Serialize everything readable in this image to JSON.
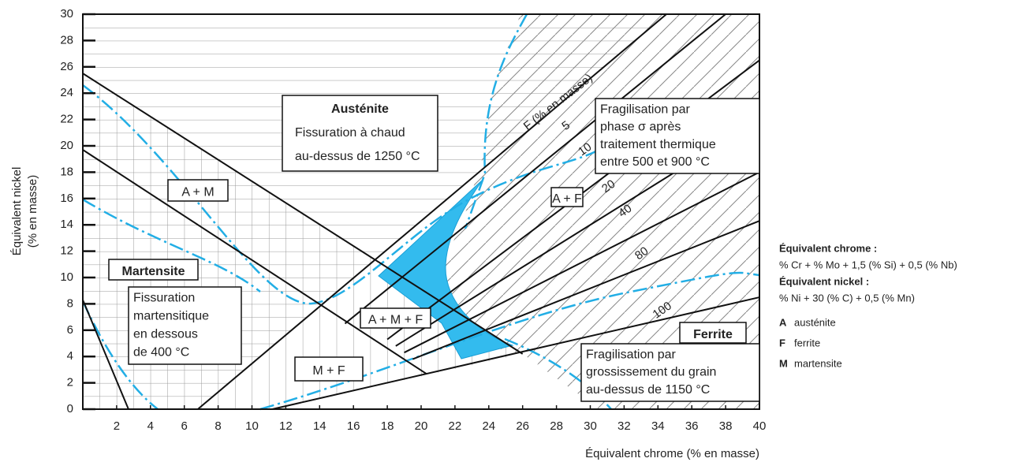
{
  "chart_data": {
    "type": "line",
    "x_label": "Équivalent chrome (% en masse)",
    "y_label": [
      "Équivalent nickel",
      "(% en masse)"
    ],
    "xlim": [
      0,
      40
    ],
    "xticks": [
      2,
      4,
      6,
      8,
      10,
      12,
      14,
      16,
      18,
      20,
      22,
      24,
      26,
      28,
      30,
      32,
      34,
      36,
      38,
      40
    ],
    "ylim": [
      0,
      30
    ],
    "yticks": [
      0,
      2,
      4,
      6,
      8,
      10,
      12,
      14,
      16,
      18,
      20,
      22,
      24,
      26,
      28,
      30
    ],
    "series": [
      {
        "color": "#111111",
        "x": [
          0,
          26
        ],
        "values": [
          25.5,
          4.2
        ]
      },
      {
        "color": "#111111",
        "x": [
          0,
          20.3
        ],
        "values": [
          19.7,
          2.7
        ]
      },
      {
        "color": "#111111",
        "x": [
          0,
          2.7
        ],
        "values": [
          8.3,
          0
        ]
      },
      {
        "color": "#111111",
        "x": [
          6.8,
          34.5
        ],
        "values": [
          0,
          30
        ]
      },
      {
        "name": "5",
        "color": "#111111",
        "x": [
          15.5,
          38
        ],
        "values": [
          6.5,
          30
        ]
      },
      {
        "name": "10",
        "color": "#111111",
        "x": [
          18,
          40
        ],
        "values": [
          5.3,
          26.5
        ]
      },
      {
        "name": "20",
        "color": "#111111",
        "x": [
          18.5,
          40
        ],
        "values": [
          4.8,
          22
        ]
      },
      {
        "name": "40",
        "color": "#111111",
        "x": [
          19,
          40
        ],
        "values": [
          4.3,
          18
        ]
      },
      {
        "name": "80",
        "color": "#111111",
        "x": [
          19.5,
          40
        ],
        "values": [
          3.8,
          14.3
        ]
      },
      {
        "name": "100",
        "color": "#111111",
        "x": [
          11.2,
          40
        ],
        "values": [
          0,
          8.5
        ]
      }
    ],
    "series_label": "F (% en masse)",
    "annotations": [
      [
        "Austénite",
        "Fissuration à chaud",
        "au-dessus de 1250 °C"
      ],
      [
        "Fragilisation par",
        "phase σ après",
        "traitement thermique",
        "entre 500 et 900 °C"
      ],
      [
        "A + M"
      ],
      [
        "A + F"
      ],
      [
        "Martensite"
      ],
      [
        "Fissuration",
        "martensitique",
        "en dessous",
        "de 400 °C"
      ],
      [
        "A + M + F"
      ],
      [
        "M + F"
      ],
      [
        "Ferrite"
      ],
      [
        "Fragilisation par",
        "grossissement du grain",
        "au-dessus de 1150 °C"
      ]
    ],
    "notes": [
      "Équivalent chrome :",
      "% Cr + % Mo + 1,5 (% Si) + 0,5 (% Nb)",
      "Équivalent nickel :",
      "% Ni + 30 (% C) + 0,5 (% Mn)"
    ],
    "abbreviations": [
      [
        "A",
        "austénite"
      ],
      [
        "F",
        "ferrite"
      ],
      [
        "M",
        "martensite"
      ]
    ]
  }
}
